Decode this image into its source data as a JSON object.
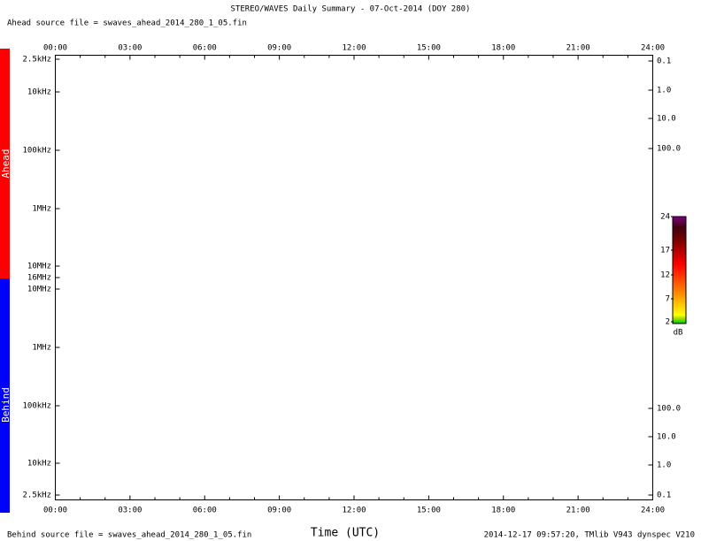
{
  "title": "STEREO/WAVES Daily Summary - 07-Oct-2014 (DOY 280)",
  "ahead_file": "Ahead source file = swaves_ahead_2014_280_1_05.fin",
  "behind_file": "Behind source file = swaves_ahead_2014_280_1_05.fin",
  "x_axis_title": "Time (UTC)",
  "footer": "2014-12-17 09:57:20, TMlib V943 dynspec V210",
  "ahead_side_label": "Ahead",
  "behind_side_label": "Behind",
  "top_time_labels": [
    "00:00",
    "03:00",
    "06:00",
    "09:00",
    "12:00",
    "15:00",
    "18:00",
    "21:00",
    "24:00"
  ],
  "bottom_time_labels": [
    "00:00",
    "03:00",
    "06:00",
    "09:00",
    "12:00",
    "15:00",
    "18:00",
    "21:00",
    "24:00"
  ],
  "left_ahead_labels": [
    "2.5kHz",
    "10kHz",
    "100kHz",
    "1MHz",
    "10MHz",
    "16MHz"
  ],
  "left_behind_labels": [
    "10MHz",
    "1MHz",
    "100kHz",
    "10kHz",
    "2.5kHz"
  ],
  "right_top_labels": [
    "0.1",
    "1.0",
    "10.0",
    "100.0"
  ],
  "right_bottom_labels": [
    "100.0",
    "10.0",
    "1.0",
    "0.1"
  ],
  "colorbar": {
    "labels": [
      "24",
      "17",
      "12",
      "7",
      "2"
    ],
    "unit": "dB"
  }
}
